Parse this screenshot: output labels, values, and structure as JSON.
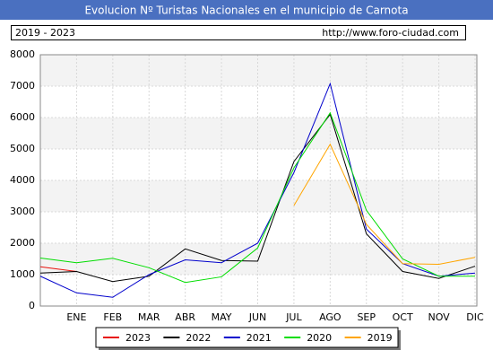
{
  "chart_data": {
    "type": "line",
    "title": "Evolucion Nº Turistas Nacionales en el municipio de Carnota",
    "subtitle": "2019 - 2023",
    "source": "http://www.foro-ciudad.com",
    "categories": [
      null,
      "ENE",
      "FEB",
      "MAR",
      "ABR",
      "MAY",
      "JUN",
      "JUL",
      "AGO",
      "SEP",
      "OCT",
      "NOV",
      "DIC"
    ],
    "series": [
      {
        "name": "2023",
        "color": "#e8120c",
        "values": [
          1250,
          1100,
          null,
          null,
          null,
          null,
          null,
          null,
          null,
          null,
          null,
          null,
          null
        ]
      },
      {
        "name": "2022",
        "color": "#000000",
        "values": [
          1050,
          1100,
          780,
          950,
          1820,
          1450,
          1430,
          4600,
          6100,
          2300,
          1100,
          880,
          1270
        ]
      },
      {
        "name": "2021",
        "color": "#0000cc",
        "values": [
          950,
          420,
          280,
          1000,
          1470,
          1380,
          2000,
          4250,
          7080,
          2450,
          1350,
          950,
          1050
        ]
      },
      {
        "name": "2020",
        "color": "#00dd00",
        "values": [
          1530,
          1380,
          1520,
          1220,
          750,
          930,
          1850,
          4400,
          6150,
          3050,
          1500,
          950,
          950
        ]
      },
      {
        "name": "2019",
        "color": "#ffa500",
        "values": [
          null,
          null,
          null,
          null,
          null,
          null,
          null,
          3200,
          5150,
          2600,
          1350,
          1330,
          1550
        ]
      }
    ],
    "ylim": [
      0,
      8000
    ],
    "yticks": [
      0,
      1000,
      2000,
      3000,
      4000,
      5000,
      6000,
      7000,
      8000
    ],
    "grid": true
  }
}
